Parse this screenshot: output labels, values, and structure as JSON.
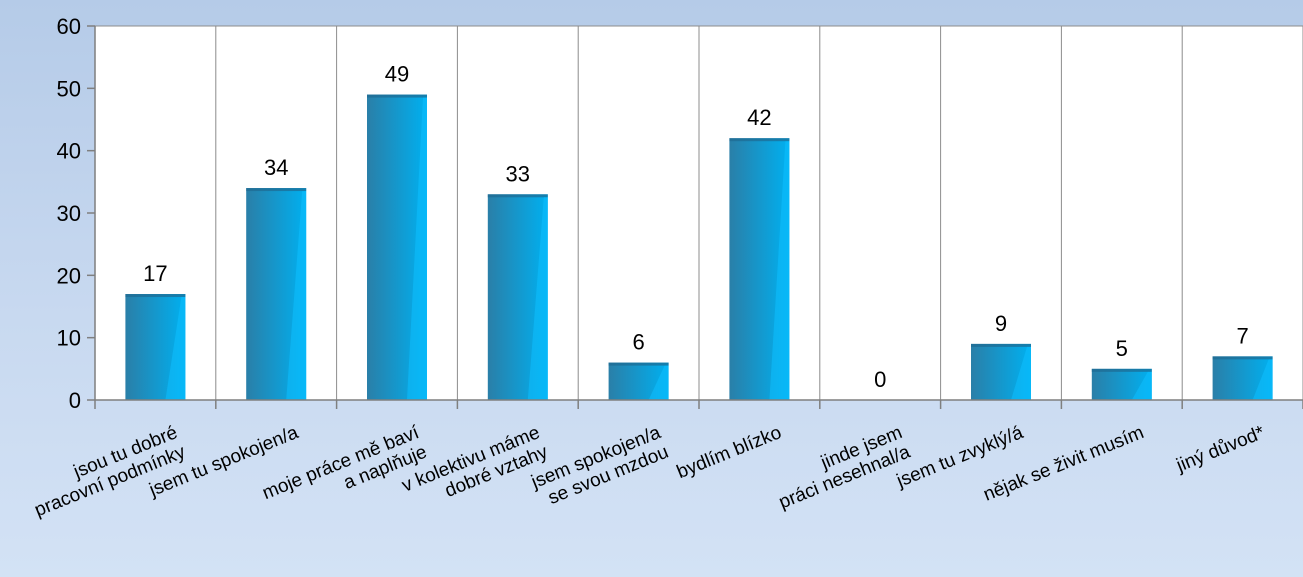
{
  "chart_data": {
    "type": "bar",
    "categories": [
      [
        "jsou tu dobré",
        "pracovní podmínky"
      ],
      [
        "jsem tu spokojen/a"
      ],
      [
        "moje práce mě baví",
        "a naplňuje"
      ],
      [
        "v kolektivu máme",
        "dobré vztahy"
      ],
      [
        "jsem spokojen/a",
        "se svou mzdou"
      ],
      [
        "bydlím blízko"
      ],
      [
        "jinde jsem",
        "práci nesehnal/a"
      ],
      [
        "jsem tu zvyklý/á"
      ],
      [
        "nějak se živit musím"
      ],
      [
        "jiný důvod*"
      ]
    ],
    "values": [
      17,
      34,
      49,
      33,
      6,
      42,
      0,
      9,
      5,
      7
    ],
    "data_labels": [
      "17",
      "34",
      "49",
      "33",
      "6",
      "42",
      "0",
      "9",
      "5",
      "7"
    ],
    "yticks": [
      "0",
      "10",
      "20",
      "30",
      "40",
      "50",
      "60"
    ],
    "ylim": [
      0,
      60
    ],
    "grid": "vertical",
    "colors": {
      "bar_dark": "#2a7fa8",
      "bar_light": "#00b0f0",
      "plot_bg": "#ffffff",
      "grid": "#8c8c8c",
      "axis": "#7f7f7f"
    }
  }
}
